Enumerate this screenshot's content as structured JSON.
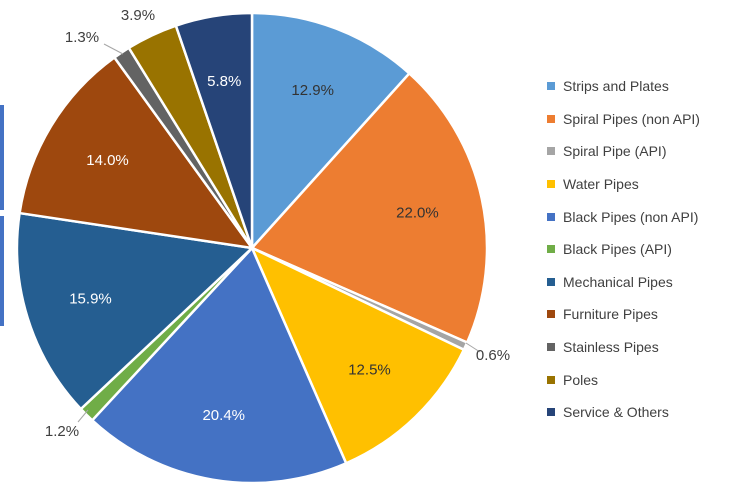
{
  "chart_data": {
    "type": "pie",
    "title": "",
    "legend_position": "right",
    "start_angle_deg": 0,
    "direction": "clockwise",
    "slices": [
      {
        "name": "Strips and Plates",
        "value": 12.9,
        "label": "12.9%",
        "color": "#5b9bd5",
        "label_position": "inside"
      },
      {
        "name": "Spiral Pipes (non API)",
        "value": 22.0,
        "label": "22.0%",
        "color": "#ed7d31",
        "label_position": "inside"
      },
      {
        "name": "Spiral Pipe (API)",
        "value": 0.6,
        "label": "0.6%",
        "color": "#a5a5a5",
        "label_position": "outside"
      },
      {
        "name": "Water Pipes",
        "value": 12.5,
        "label": "12.5%",
        "color": "#ffc000",
        "label_position": "inside"
      },
      {
        "name": "Black Pipes (non API)",
        "value": 20.4,
        "label": "20.4%",
        "color": "#4472c4",
        "label_position": "inside"
      },
      {
        "name": "Black Pipes (API)",
        "value": 1.2,
        "label": "1.2%",
        "color": "#70ad47",
        "label_position": "outside"
      },
      {
        "name": "Mechanical Pipes",
        "value": 15.9,
        "label": "15.9%",
        "color": "#255e91",
        "label_position": "inside"
      },
      {
        "name": "Furniture Pipes",
        "value": 14.0,
        "label": "14.0%",
        "color": "#9e480e",
        "label_position": "inside"
      },
      {
        "name": "Stainless Pipes",
        "value": 1.3,
        "label": "1.3%",
        "color": "#636363",
        "label_position": "outside"
      },
      {
        "name": "Poles",
        "value": 3.9,
        "label": "3.9%",
        "color": "#997300",
        "label_position": "outside"
      },
      {
        "name": "Service & Others",
        "value": 5.8,
        "label": "5.8%",
        "color": "#264478",
        "label_position": "inside"
      }
    ]
  }
}
